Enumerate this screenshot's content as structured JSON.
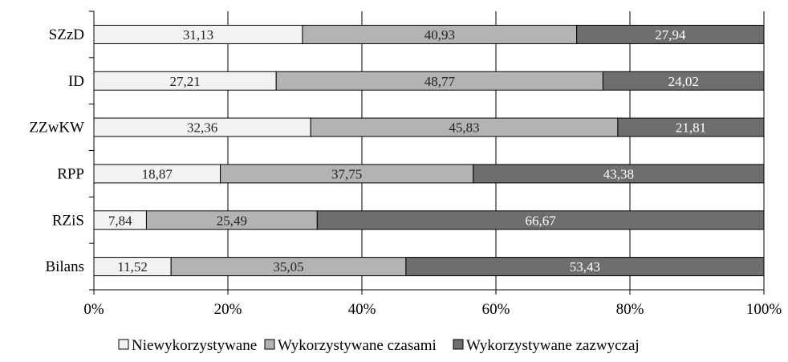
{
  "chart_data": {
    "type": "bar",
    "orientation": "horizontal",
    "stacked": "percent",
    "categories": [
      "SZzD",
      "ID",
      "ZZwKW",
      "RPP",
      "RZiS",
      "Bilans"
    ],
    "series": [
      {
        "name": "Niewykorzystywane",
        "values": [
          31.13,
          27.21,
          32.36,
          18.87,
          7.84,
          11.52
        ],
        "labels": [
          "31,13",
          "27,21",
          "32,36",
          "18,87",
          "7,84",
          "11,52"
        ],
        "color": "#f2f2f2"
      },
      {
        "name": "Wykorzystywane czasami",
        "values": [
          40.93,
          48.77,
          45.83,
          37.75,
          25.49,
          35.05
        ],
        "labels": [
          "40,93",
          "48,77",
          "45,83",
          "37,75",
          "25,49",
          "35,05"
        ],
        "color": "#b3b3b3"
      },
      {
        "name": "Wykorzystywane zazwyczaj",
        "values": [
          27.94,
          24.02,
          21.81,
          43.38,
          66.67,
          53.43
        ],
        "labels": [
          "27,94",
          "24,02",
          "21,81",
          "43,38",
          "66,67",
          "53,43"
        ],
        "color": "#6e6e6e"
      }
    ],
    "xlim": [
      0,
      100
    ],
    "xticks": [
      "0%",
      "20%",
      "40%",
      "60%",
      "80%",
      "100%"
    ],
    "grid": "vertical",
    "legend_position": "bottom",
    "title": "",
    "xlabel": "",
    "ylabel": ""
  }
}
